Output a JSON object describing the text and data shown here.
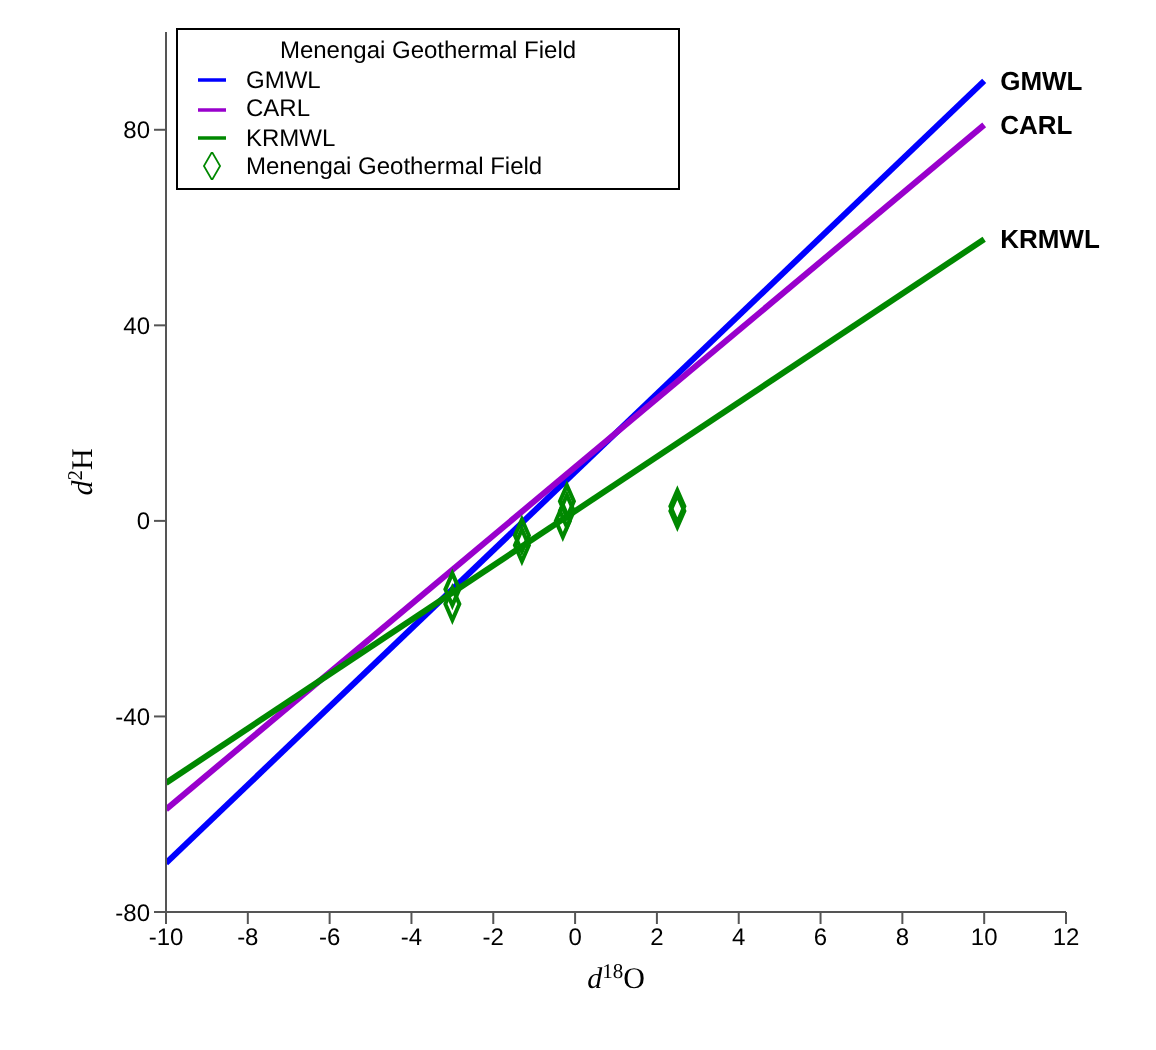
{
  "chart_data": {
    "type": "line",
    "xlabel": "d$^{18}$O",
    "ylabel": "d$^{2}$H",
    "legend_title": "Menengai Geothermal Field",
    "legend": "top left",
    "grid": false,
    "xlim": [
      -10,
      12
    ],
    "xticks": [
      -10,
      -8,
      -6,
      -4,
      -2,
      0,
      2,
      4,
      6,
      8,
      10,
      12
    ],
    "ylim": [
      -80,
      100
    ],
    "yticks": [
      -80,
      -40,
      0,
      40,
      80
    ],
    "series": [
      {
        "name": "GMWL",
        "color": "#0000ff",
        "marker": "none",
        "x": [
          -10,
          10
        ],
        "values": [
          -70,
          90
        ]
      },
      {
        "name": "CARL",
        "color": "#9900cc",
        "marker": "none",
        "x": [
          -10,
          10
        ],
        "values": [
          -59,
          81
        ]
      },
      {
        "name": "KRMWL",
        "color": "#008800",
        "marker": "none",
        "x": [
          -10,
          10
        ],
        "values": [
          -53.6,
          57.6
        ]
      },
      {
        "name": "Menengai Geothermal Field",
        "color": "#008800",
        "type": "scatter",
        "marker": "diamond",
        "x": [
          -3,
          -3,
          -1.3,
          -1.3,
          -0.3,
          -0.2,
          -0.2,
          2.5,
          2.5
        ],
        "values": [
          -14,
          -17,
          -3,
          -5,
          0,
          2,
          4,
          3,
          2
        ]
      }
    ]
  }
}
